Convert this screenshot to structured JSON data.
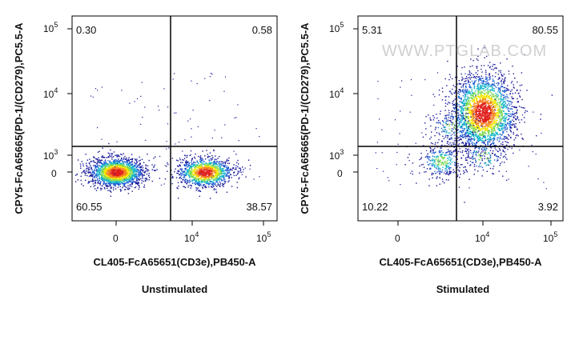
{
  "chart_data": [
    {
      "type": "scatter",
      "caption": "Unstimulated",
      "xlabel": "CL405-FcA65651(CD3e),PB450-A",
      "ylabel": "CPY5-FcA65665(PD-1/(CD279),PC5.5-A",
      "x_ticks": [
        {
          "value": 0,
          "base": "0",
          "exp": ""
        },
        {
          "value": 10000,
          "base": "10",
          "exp": "4"
        },
        {
          "value": 100000,
          "base": "10",
          "exp": "5"
        }
      ],
      "y_ticks": [
        {
          "value": 0,
          "base": "0",
          "exp": ""
        },
        {
          "value": 1000,
          "base": "10",
          "exp": "3"
        },
        {
          "value": 10000,
          "base": "10",
          "exp": "4"
        },
        {
          "value": 100000,
          "base": "10",
          "exp": "5"
        }
      ],
      "quadrants": {
        "upper_left": "0.30",
        "upper_right": "0.58",
        "lower_left": "60.55",
        "lower_right": "38.57"
      },
      "gate": {
        "x": 3500,
        "y": 1500
      },
      "populations": [
        {
          "x": 0,
          "y": 0,
          "weight": 0.6
        },
        {
          "x": 15000,
          "y": 0,
          "weight": 0.39
        }
      ]
    },
    {
      "type": "scatter",
      "caption": "Stimulated",
      "watermark": "WWW.PTGLAB.COM",
      "xlabel": "CL405-FcA65651(CD3e),PB450-A",
      "ylabel": "CPY5-FcA65665(PD-1/(CD279),PC5.5-A",
      "x_ticks": [
        {
          "value": 0,
          "base": "0",
          "exp": ""
        },
        {
          "value": 10000,
          "base": "10",
          "exp": "4"
        },
        {
          "value": 100000,
          "base": "10",
          "exp": "5"
        }
      ],
      "y_ticks": [
        {
          "value": 0,
          "base": "0",
          "exp": ""
        },
        {
          "value": 1000,
          "base": "10",
          "exp": "3"
        },
        {
          "value": 10000,
          "base": "10",
          "exp": "4"
        },
        {
          "value": 100000,
          "base": "10",
          "exp": "5"
        }
      ],
      "quadrants": {
        "upper_left": "5.31",
        "upper_right": "80.55",
        "lower_left": "10.22",
        "lower_right": "3.92"
      },
      "gate": {
        "x": 3500,
        "y": 1500
      },
      "populations": [
        {
          "x": 10000,
          "y": 5000,
          "weight": 0.8
        },
        {
          "x": 1500,
          "y": 300,
          "weight": 0.1
        },
        {
          "x": 2500,
          "y": 3000,
          "weight": 0.05
        },
        {
          "x": 10000,
          "y": 700,
          "weight": 0.04
        }
      ]
    }
  ]
}
